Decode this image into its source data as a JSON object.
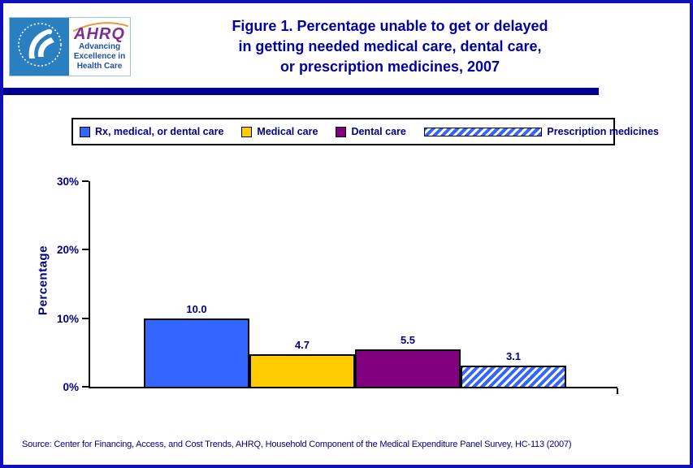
{
  "colors": {
    "frame_border": "#0f0fbb",
    "divider_bar": "#000090",
    "title_text": "#0000a0",
    "body_text": "#000080",
    "bar_blue": "#3366FF",
    "bar_yellow": "#FFCC00",
    "bar_purple": "#800080"
  },
  "logo": {
    "ahrq_acronym": "AHRQ",
    "tagline_line1": "Advancing",
    "tagline_line2": "Excellence in",
    "tagline_line3": "Health Care"
  },
  "header": {
    "title_lines": [
      "Figure 1. Percentage unable to get or delayed",
      "in getting needed medical care, dental care,",
      "or prescription medicines, 2007"
    ]
  },
  "legend": {
    "items": [
      {
        "label": "Rx, medical, or dental care",
        "swatch": "solid",
        "color": "#3366FF"
      },
      {
        "label": "Medical care",
        "swatch": "solid",
        "color": "#FFCC00"
      },
      {
        "label": "Dental care",
        "swatch": "solid",
        "color": "#800080"
      },
      {
        "label": "Prescription medicines",
        "swatch": "diagonal-hatch",
        "color": "#3366FF"
      }
    ]
  },
  "chart_data": {
    "type": "bar",
    "categories": [
      "Rx, medical, or dental care",
      "Medical care",
      "Dental care",
      "Prescription medicines"
    ],
    "values": [
      10.0,
      4.7,
      5.5,
      3.1
    ],
    "value_labels": [
      "10.0",
      "4.7",
      "5.5",
      "3.1"
    ],
    "title": "Figure 1. Percentage unable to get or delayed in getting needed medical care, dental care, or prescription medicines, 2007",
    "xlabel": "",
    "ylabel": "Percentage",
    "ylim": [
      0,
      30
    ],
    "ytick_values": [
      0,
      10,
      20,
      30
    ],
    "ytick_labels": [
      "0%",
      "10%",
      "20%",
      "30%"
    ],
    "grid": false,
    "legend_position": "top",
    "bar_styles": [
      {
        "fill": "#3366FF",
        "pattern": "solid"
      },
      {
        "fill": "#FFCC00",
        "pattern": "solid"
      },
      {
        "fill": "#800080",
        "pattern": "solid"
      },
      {
        "fill": "#3366FF",
        "pattern": "diagonal-hatch"
      }
    ]
  },
  "footer": {
    "source": "Source: Center for Financing, Access, and Cost Trends, AHRQ, Household Component of the Medical Expenditure Panel Survey, HC-113 (2007)"
  }
}
